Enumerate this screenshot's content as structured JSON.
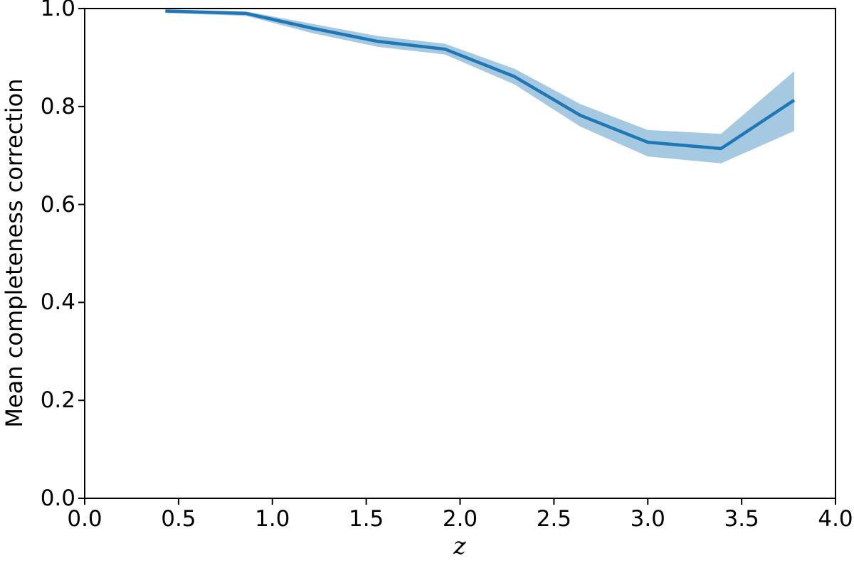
{
  "chart_data": {
    "type": "line",
    "title": "",
    "xlabel": "z",
    "ylabel": "Mean completeness correction",
    "xlim": [
      0.0,
      4.0
    ],
    "ylim": [
      0.0,
      1.0
    ],
    "grid": false,
    "legend": "none",
    "xticks": [
      0.0,
      0.5,
      1.0,
      1.5,
      2.0,
      2.5,
      3.0,
      3.5,
      4.0
    ],
    "xtick_labels": [
      "0.0",
      "0.5",
      "1.0",
      "1.5",
      "2.0",
      "2.5",
      "3.0",
      "3.5",
      "4.0"
    ],
    "yticks": [
      0.0,
      0.2,
      0.4,
      0.6,
      0.8,
      1.0
    ],
    "ytick_labels": [
      "0.0",
      "0.2",
      "0.4",
      "0.6",
      "0.8",
      "1.0"
    ],
    "colors": {
      "line": "#1f77b4",
      "band": "#1f77b4",
      "band_opacity": 0.4,
      "axis": "#000000",
      "background": "#ffffff"
    },
    "series": [
      {
        "name": "mean-completeness-correction",
        "x": [
          0.43,
          0.86,
          1.21,
          1.56,
          1.92,
          2.29,
          2.64,
          3.0,
          3.39,
          3.78
        ],
        "y": [
          0.995,
          0.99,
          0.96,
          0.933,
          0.917,
          0.861,
          0.782,
          0.727,
          0.714,
          0.813
        ],
        "y_lower": [
          0.991,
          0.985,
          0.95,
          0.922,
          0.906,
          0.845,
          0.759,
          0.698,
          0.684,
          0.75
        ],
        "y_upper": [
          0.998,
          0.994,
          0.969,
          0.944,
          0.928,
          0.877,
          0.805,
          0.752,
          0.744,
          0.872
        ]
      }
    ]
  }
}
